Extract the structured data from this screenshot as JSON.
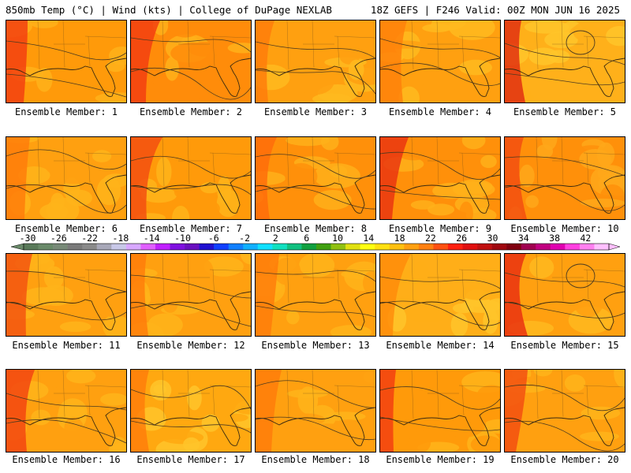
{
  "header": {
    "left": "850mb Temp (°C) | Wind (kts) | College of DuPage NEXLAB",
    "right": "18Z GEFS | F246 Valid: 00Z MON JUN 16 2025"
  },
  "members": [
    {
      "label": "Ensemble Member: 1",
      "base": "#ff9a0a",
      "hot": "#f23a10",
      "cool": "#ffb21a",
      "contour_circle": false
    },
    {
      "label": "Ensemble Member: 2",
      "base": "#ff8c0a",
      "hot": "#f23a10",
      "cool": "#ffb01a",
      "contour_circle": false
    },
    {
      "label": "Ensemble Member: 3",
      "base": "#ffa010",
      "hot": "#ff7a0a",
      "cool": "#ffba1e",
      "contour_circle": false
    },
    {
      "label": "Ensemble Member: 4",
      "base": "#ffa010",
      "hot": "#ff7f0a",
      "cool": "#ffba1e",
      "contour_circle": false
    },
    {
      "label": "Ensemble Member: 5",
      "base": "#ffb01a",
      "hot": "#e02810",
      "cool": "#ffc62a",
      "contour_circle": true
    },
    {
      "label": "Ensemble Member: 6",
      "base": "#ffa010",
      "hot": "#ff7a0a",
      "cool": "#ffb41a",
      "contour_circle": false
    },
    {
      "label": "Ensemble Member: 7",
      "base": "#ff9a0a",
      "hot": "#f24a10",
      "cool": "#ffb41a",
      "contour_circle": false
    },
    {
      "label": "Ensemble Member: 8",
      "base": "#ff900a",
      "hot": "#ff6a0a",
      "cool": "#ffb01a",
      "contour_circle": false
    },
    {
      "label": "Ensemble Member: 9",
      "base": "#ff900a",
      "hot": "#e83010",
      "cool": "#ffb01a",
      "contour_circle": false
    },
    {
      "label": "Ensemble Member: 10",
      "base": "#ff900a",
      "hot": "#f24a10",
      "cool": "#ffa81a",
      "contour_circle": false
    },
    {
      "label": "Ensemble Member: 11",
      "base": "#ffa010",
      "hot": "#f25010",
      "cool": "#ffb41a",
      "contour_circle": false
    },
    {
      "label": "Ensemble Member: 12",
      "base": "#ffa010",
      "hot": "#ff7a0a",
      "cool": "#ffb41a",
      "contour_circle": false
    },
    {
      "label": "Ensemble Member: 13",
      "base": "#ffa010",
      "hot": "#ff7a0a",
      "cool": "#ffb41a",
      "contour_circle": false
    },
    {
      "label": "Ensemble Member: 14",
      "base": "#ffae18",
      "hot": "#ff8a0a",
      "cool": "#ffc42a",
      "contour_circle": false
    },
    {
      "label": "Ensemble Member: 15",
      "base": "#ffa010",
      "hot": "#e82a10",
      "cool": "#ffb81e",
      "contour_circle": true
    },
    {
      "label": "Ensemble Member: 16",
      "base": "#ffa010",
      "hot": "#f24010",
      "cool": "#ffb41a",
      "contour_circle": false
    },
    {
      "label": "Ensemble Member: 17",
      "base": "#ffa810",
      "hot": "#ff7a0a",
      "cool": "#ffc42a",
      "contour_circle": false
    },
    {
      "label": "Ensemble Member: 18",
      "base": "#ffa010",
      "hot": "#ff7a0a",
      "cool": "#ffb41a",
      "contour_circle": false
    },
    {
      "label": "Ensemble Member: 19",
      "base": "#ff9a0a",
      "hot": "#f23a10",
      "cool": "#ffb41a",
      "contour_circle": false
    },
    {
      "label": "Ensemble Member: 20",
      "base": "#ffa010",
      "hot": "#f24a10",
      "cool": "#ffb41a",
      "contour_circle": false
    }
  ],
  "colorbar": {
    "labels": [
      "-30",
      "-26",
      "-22",
      "-18",
      "-14",
      "-10",
      "-6",
      "-2",
      "2",
      "6",
      "10",
      "14",
      "18",
      "22",
      "26",
      "30",
      "34",
      "38",
      "42"
    ],
    "colors": [
      "#5a7a5a",
      "#6a8a6a",
      "#788a78",
      "#7a7a7a",
      "#8a8a8a",
      "#a8a8b8",
      "#c8c8e8",
      "#d8a8ff",
      "#e060ff",
      "#c020ff",
      "#8010e0",
      "#6a10c0",
      "#2010d0",
      "#1040ff",
      "#1080ff",
      "#10b0ff",
      "#10e0ff",
      "#10e0c0",
      "#10c080",
      "#10a040",
      "#40a010",
      "#90c010",
      "#e0e010",
      "#ffff10",
      "#ffe010",
      "#ffc010",
      "#ffa010",
      "#ff8010",
      "#ff5010",
      "#ff2010",
      "#e01010",
      "#c01010",
      "#a00810",
      "#800010",
      "#a00050",
      "#c00080",
      "#e000b0",
      "#ff40e0",
      "#ff80f0",
      "#ffc0ff"
    ]
  }
}
